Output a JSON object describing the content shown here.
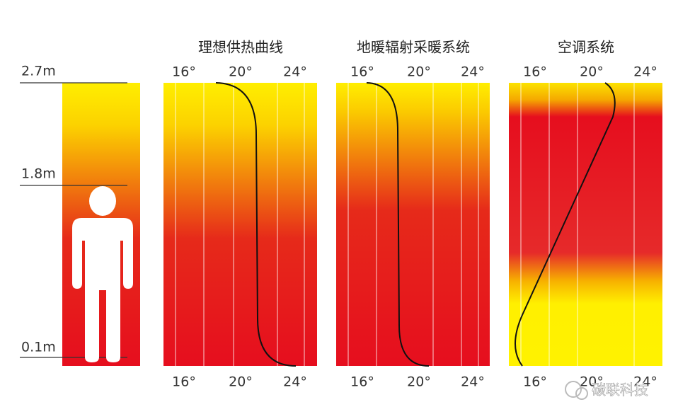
{
  "height_labels": [
    "2.7m",
    "1.8m",
    "0.1m"
  ],
  "panels": [
    {
      "title": "理想供热曲线",
      "top_ticks": [
        "16°",
        "20°",
        "24°"
      ],
      "bottom_ticks": [
        "16°",
        "20°",
        "24°"
      ]
    },
    {
      "title": "地暖辐射采暖系统",
      "top_ticks": [
        "16°",
        "20°",
        "24°"
      ],
      "bottom_ticks": [
        "16°",
        "20°",
        "24°"
      ]
    },
    {
      "title": "空调系统",
      "top_ticks": [
        "16°",
        "20°",
        "24°"
      ],
      "bottom_ticks": [
        "16°",
        "20°",
        "24°"
      ]
    }
  ],
  "watermark": "碳联科技"
}
